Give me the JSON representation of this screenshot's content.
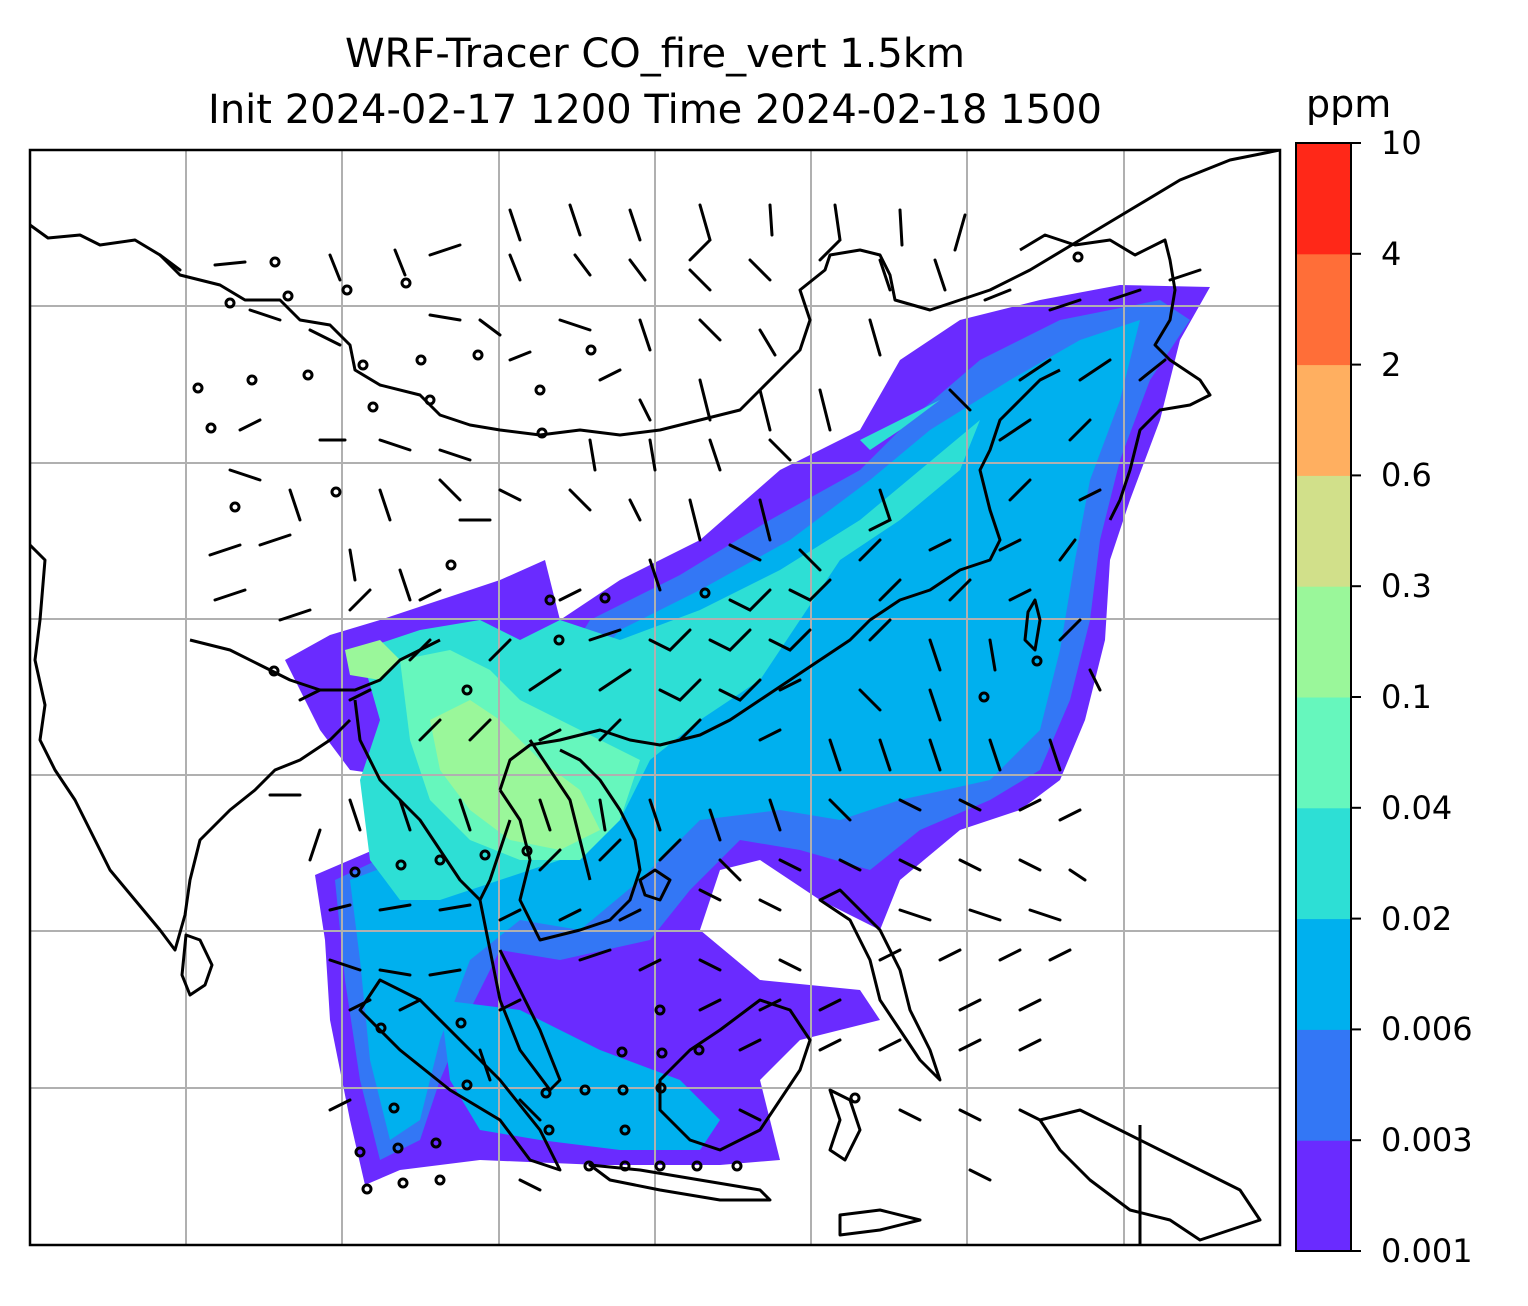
{
  "title": {
    "line1": "WRF-Tracer CO_fire_vert 1.5km",
    "line2": "Init 2024-02-17 1200 Time 2024-02-18 1500"
  },
  "colorbar": {
    "units": "ppm",
    "levels": [
      "0.001",
      "0.003",
      "0.006",
      "0.02",
      "0.04",
      "0.1",
      "0.3",
      "0.6",
      "2",
      "4",
      "10"
    ],
    "colors": [
      "#6a2bff",
      "#3377f5",
      "#00b0ee",
      "#2ddfd5",
      "#66f7bd",
      "#9af79a",
      "#d1e08a",
      "#ffaf60",
      "#ff6e38",
      "#ff2818"
    ]
  },
  "map": {
    "gridlines": true,
    "field": "CO_fire_vert tracer concentration at 1.5km with wind barbs",
    "colors": {
      "frame": "#000000",
      "grid": "#b0b0b0",
      "coastline": "#000000"
    }
  }
}
